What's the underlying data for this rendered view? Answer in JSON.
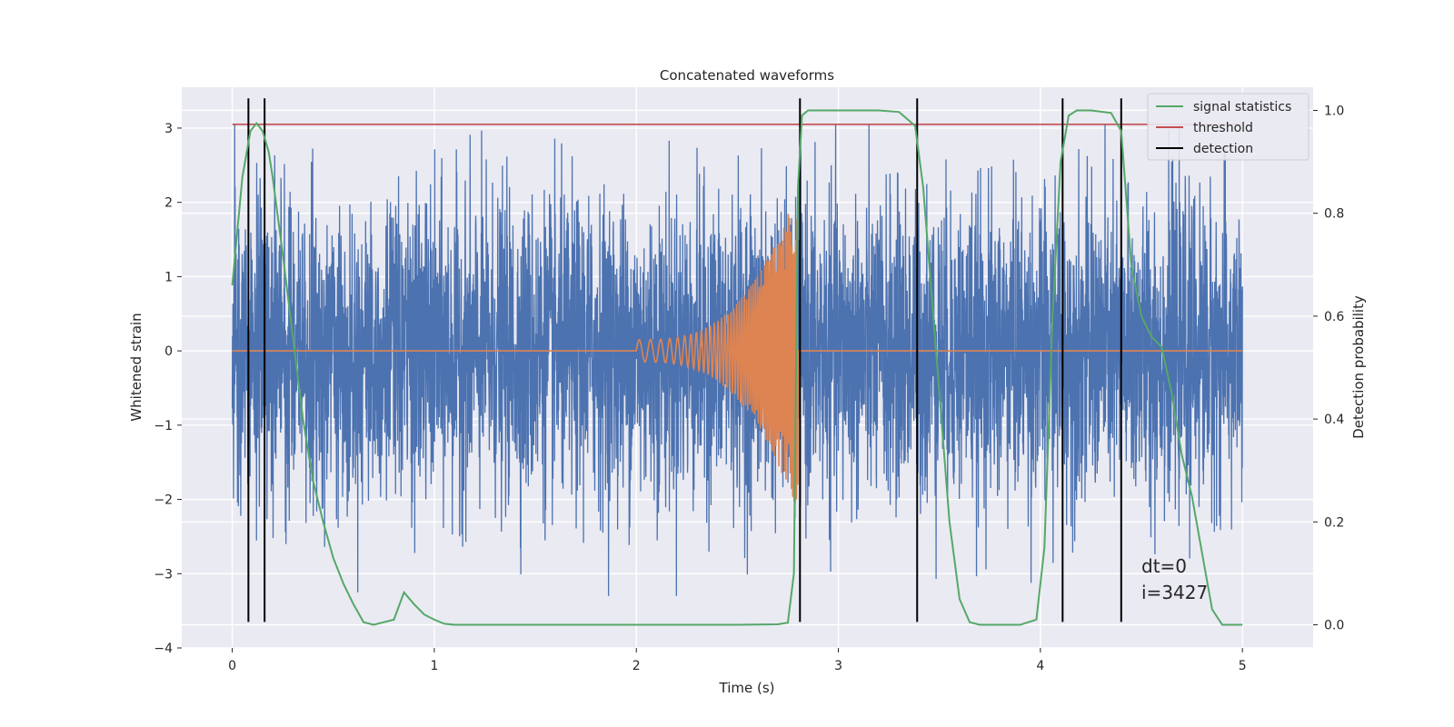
{
  "chart_data": {
    "type": "line",
    "title": "Concatenated waveforms",
    "xlabel": "Time (s)",
    "ylabel_left": "Whitened strain",
    "ylabel_right": "Detection probability",
    "xlim": [
      -0.25,
      5.35
    ],
    "ylim_left": [
      -4,
      3.55
    ],
    "ylim_right": [
      -0.045,
      1.045
    ],
    "xticks": [
      0,
      1,
      2,
      3,
      4,
      5
    ],
    "yticks_left": [
      -4,
      -3,
      -2,
      -1,
      0,
      1,
      2,
      3
    ],
    "yticks_right": [
      0.0,
      0.2,
      0.4,
      0.6,
      0.8,
      1.0
    ],
    "grid": true,
    "legend_position": "top-right",
    "colors": {
      "background": "#eaeaf2",
      "noise": "#4c72b0",
      "chirp": "#dd8452",
      "signal_statistics": "#55a868",
      "threshold": "#c44e52",
      "detection": "#000000"
    },
    "legend": [
      {
        "label": "signal statistics",
        "color": "#55a868"
      },
      {
        "label": "threshold",
        "color": "#c44e52"
      },
      {
        "label": "detection",
        "color": "#000000"
      }
    ],
    "series": [
      {
        "name": "signal statistics",
        "axis": "right",
        "x": [
          0.0,
          0.05,
          0.09,
          0.12,
          0.15,
          0.18,
          0.2,
          0.25,
          0.3,
          0.35,
          0.4,
          0.45,
          0.5,
          0.55,
          0.6,
          0.65,
          0.7,
          0.75,
          0.8,
          0.85,
          0.9,
          0.95,
          1.0,
          1.05,
          1.1,
          1.5,
          2.0,
          2.5,
          2.7,
          2.75,
          2.78,
          2.8,
          2.82,
          2.85,
          3.0,
          3.2,
          3.3,
          3.38,
          3.42,
          3.45,
          3.5,
          3.55,
          3.6,
          3.65,
          3.7,
          3.8,
          3.9,
          3.98,
          4.02,
          4.06,
          4.1,
          4.14,
          4.18,
          4.25,
          4.35,
          4.4,
          4.45,
          4.5,
          4.55,
          4.6,
          4.65,
          4.7,
          4.75,
          4.8,
          4.85,
          4.9,
          5.0
        ],
        "values": [
          0.66,
          0.87,
          0.96,
          0.975,
          0.96,
          0.92,
          0.87,
          0.72,
          0.56,
          0.4,
          0.28,
          0.2,
          0.13,
          0.08,
          0.04,
          0.005,
          0.0,
          0.005,
          0.01,
          0.063,
          0.04,
          0.02,
          0.01,
          0.002,
          0.0,
          0.0,
          0.0,
          0.0,
          0.001,
          0.004,
          0.1,
          0.85,
          0.99,
          1.0,
          1.0,
          1.0,
          0.997,
          0.97,
          0.85,
          0.7,
          0.45,
          0.2,
          0.05,
          0.005,
          0.0,
          0.0,
          0.0,
          0.01,
          0.15,
          0.6,
          0.9,
          0.99,
          1.0,
          1.0,
          0.995,
          0.96,
          0.7,
          0.6,
          0.56,
          0.54,
          0.45,
          0.33,
          0.25,
          0.14,
          0.03,
          0.0,
          0.0
        ]
      },
      {
        "name": "threshold",
        "axis": "left",
        "x": [
          0.0,
          5.0
        ],
        "values": [
          3.05,
          3.05
        ]
      },
      {
        "name": "detection",
        "axis": "left",
        "x": [
          0.08,
          0.16,
          2.81,
          3.39,
          4.11,
          4.4
        ],
        "range": [
          -3.65,
          3.4
        ]
      }
    ],
    "noise": {
      "x_range": [
        0.0,
        5.0
      ],
      "envelope": 1.0,
      "peak_range": [
        -3.3,
        3.05
      ]
    },
    "chirp": {
      "x_range": [
        2.0,
        2.8
      ],
      "amplitude_start": 0.15,
      "amplitude_end": 2.2
    },
    "annotations": [
      "dt=0",
      "i=3427"
    ]
  }
}
